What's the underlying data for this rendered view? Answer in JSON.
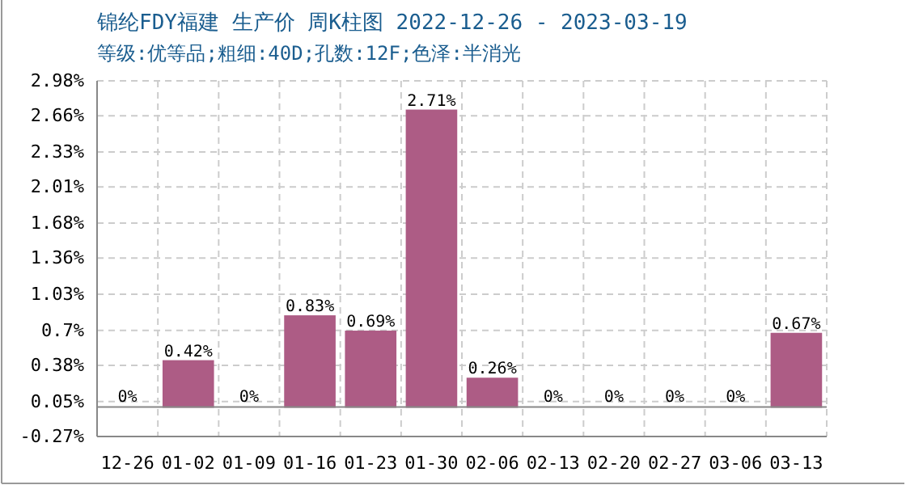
{
  "chart_data": {
    "type": "bar",
    "title": "锦纶FDY福建 生产价 周K柱图 2022-12-26 - 2023-03-19",
    "subtitle": "等级:优等品;粗细:40D;孔数:12F;色泽:半消光",
    "categories": [
      "12-26",
      "01-02",
      "01-09",
      "01-16",
      "01-23",
      "01-30",
      "02-06",
      "02-13",
      "02-20",
      "02-27",
      "03-06",
      "03-13"
    ],
    "values": [
      0,
      0.42,
      0,
      0.83,
      0.69,
      2.71,
      0.26,
      0,
      0,
      0,
      0,
      0.67
    ],
    "value_labels": [
      "0%",
      "0.42%",
      "0%",
      "0.83%",
      "0.69%",
      "2.71%",
      "0.26%",
      "0%",
      "0%",
      "0%",
      "0%",
      "0.67%"
    ],
    "color": "#ad5c85",
    "ylim": [
      -0.27,
      2.98
    ],
    "yticks": [
      {
        "value": -0.27,
        "label": "-0.27%"
      },
      {
        "value": 0.05,
        "label": "0.05%"
      },
      {
        "value": 0.38,
        "label": "0.38%"
      },
      {
        "value": 0.7,
        "label": "0.7%"
      },
      {
        "value": 1.03,
        "label": "1.03%"
      },
      {
        "value": 1.36,
        "label": "1.36%"
      },
      {
        "value": 1.68,
        "label": "1.68%"
      },
      {
        "value": 2.01,
        "label": "2.01%"
      },
      {
        "value": 2.33,
        "label": "2.33%"
      },
      {
        "value": 2.66,
        "label": "2.66%"
      },
      {
        "value": 2.98,
        "label": "2.98%"
      }
    ],
    "grid": true
  }
}
